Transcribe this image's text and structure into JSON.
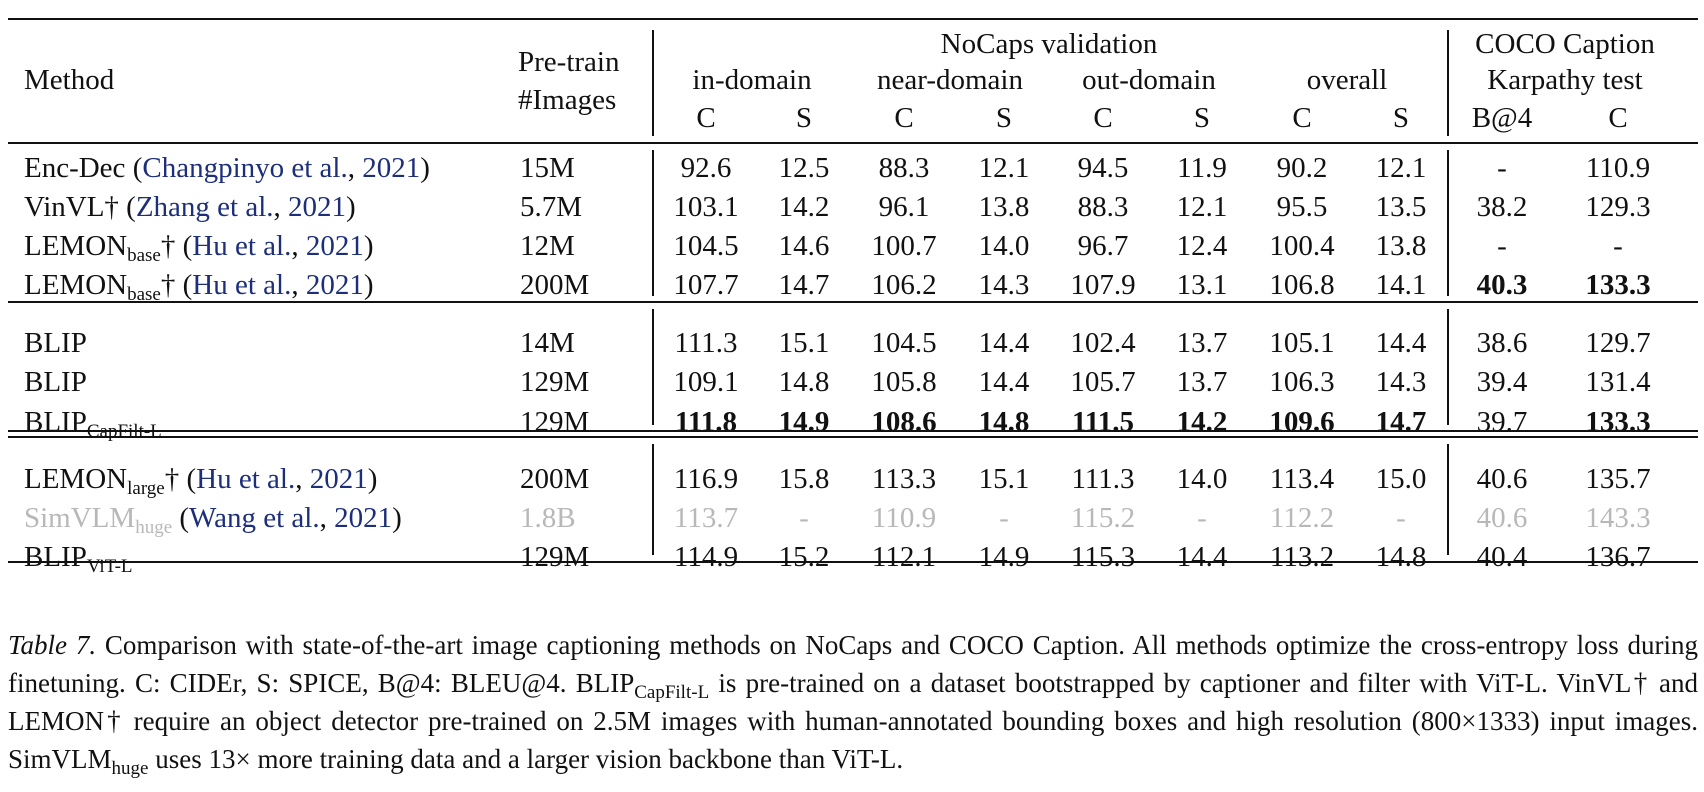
{
  "header": {
    "method": "Method",
    "pretrain_line1": "Pre-train",
    "pretrain_line2": "#Images",
    "nocaps_group": "NoCaps validation",
    "coco_group_line1": "COCO Caption",
    "coco_group_line2": "Karpathy test",
    "subgroups": [
      "in-domain",
      "near-domain",
      "out-domain",
      "overall"
    ],
    "metrics": [
      "C",
      "S",
      "C",
      "S",
      "C",
      "S",
      "C",
      "S",
      "B@4",
      "C"
    ]
  },
  "rows": [
    {
      "name": "Enc-Dec",
      "sub": "",
      "dagger": "",
      "cite_open": " (",
      "cite_author": "Changpinyo et al.",
      "cite_sep": ", ",
      "cite_year": "2021",
      "cite_close": ")",
      "images": "15M",
      "vals": [
        "92.6",
        "12.5",
        "88.3",
        "12.1",
        "94.5",
        "11.9",
        "90.2",
        "12.1",
        "-",
        "110.9"
      ]
    },
    {
      "name": "VinVL",
      "sub": "",
      "dagger": "†",
      "cite_open": " (",
      "cite_author": "Zhang et al.",
      "cite_sep": ", ",
      "cite_year": "2021",
      "cite_close": ")",
      "images": "5.7M",
      "vals": [
        "103.1",
        "14.2",
        "96.1",
        "13.8",
        "88.3",
        "12.1",
        "95.5",
        "13.5",
        "38.2",
        "129.3"
      ]
    },
    {
      "name": "LEMON",
      "sub": "base",
      "dagger": "†",
      "cite_open": " (",
      "cite_author": "Hu et al.",
      "cite_sep": ", ",
      "cite_year": "2021",
      "cite_close": ")",
      "images": "12M",
      "vals": [
        "104.5",
        "14.6",
        "100.7",
        "14.0",
        "96.7",
        "12.4",
        "100.4",
        "13.8",
        "-",
        "-"
      ]
    },
    {
      "name": "LEMON",
      "sub": "base",
      "dagger": "†",
      "cite_open": " (",
      "cite_author": "Hu et al.",
      "cite_sep": ", ",
      "cite_year": "2021",
      "cite_close": ")",
      "images": "200M",
      "vals": [
        "107.7",
        "14.7",
        "106.2",
        "14.3",
        "107.9",
        "13.1",
        "106.8",
        "14.1",
        "40.3",
        "133.3"
      ]
    },
    {
      "name": "BLIP",
      "sub": "",
      "dagger": "",
      "cite_open": "",
      "cite_author": "",
      "cite_sep": "",
      "cite_year": "",
      "cite_close": "",
      "images": "14M",
      "vals": [
        "111.3",
        "15.1",
        "104.5",
        "14.4",
        "102.4",
        "13.7",
        "105.1",
        "14.4",
        "38.6",
        "129.7"
      ]
    },
    {
      "name": "BLIP",
      "sub": "",
      "dagger": "",
      "cite_open": "",
      "cite_author": "",
      "cite_sep": "",
      "cite_year": "",
      "cite_close": "",
      "images": "129M",
      "vals": [
        "109.1",
        "14.8",
        "105.8",
        "14.4",
        "105.7",
        "13.7",
        "106.3",
        "14.3",
        "39.4",
        "131.4"
      ]
    },
    {
      "name": "BLIP",
      "sub": "CapFilt-L",
      "dagger": "",
      "cite_open": "",
      "cite_author": "",
      "cite_sep": "",
      "cite_year": "",
      "cite_close": "",
      "images": "129M",
      "vals": [
        "111.8",
        "14.9",
        "108.6",
        "14.8",
        "111.5",
        "14.2",
        "109.6",
        "14.7",
        "39.7",
        "133.3"
      ]
    },
    {
      "name": "LEMON",
      "sub": "large",
      "dagger": "†",
      "cite_open": " (",
      "cite_author": "Hu et al.",
      "cite_sep": ", ",
      "cite_year": "2021",
      "cite_close": ")",
      "images": "200M",
      "vals": [
        "116.9",
        "15.8",
        "113.3",
        "15.1",
        "111.3",
        "14.0",
        "113.4",
        "15.0",
        "40.6",
        "135.7"
      ]
    },
    {
      "name": "SimVLM",
      "sub": "huge",
      "dagger": "",
      "cite_open": " (",
      "cite_author": "Wang et al.",
      "cite_sep": ", ",
      "cite_year": "2021",
      "cite_close": ")",
      "images": "1.8B",
      "vals": [
        "113.7",
        "-",
        "110.9",
        "-",
        "115.2",
        "-",
        "112.2",
        "-",
        "40.6",
        "143.3"
      ]
    },
    {
      "name": "BLIP",
      "sub": "ViT-L",
      "dagger": "",
      "cite_open": "",
      "cite_author": "",
      "cite_sep": "",
      "cite_year": "",
      "cite_close": "",
      "images": "129M",
      "vals": [
        "114.9",
        "15.2",
        "112.1",
        "14.9",
        "115.3",
        "14.4",
        "113.2",
        "14.8",
        "40.4",
        "136.7"
      ]
    }
  ],
  "caption": {
    "label": "Table 7.",
    "p1": " Comparison with state-of-the-art image captioning methods on NoCaps and COCO Caption. All methods optimize the cross-entropy loss during finetuning. C: CIDEr, S: SPICE, B@4: BLEU@4. BLIP",
    "p1_sub": "CapFilt-L",
    "p2": " is pre-trained on a dataset bootstrapped by captioner and filter with ViT-L. VinVL† and LEMON† require an object detector pre-trained on 2.5M images with human-annotated bounding boxes and high resolution (800×1333) input images. SimVLM",
    "p2_sub": "huge",
    "p3": " uses 13× more training data and a larger vision backbone than ViT-L."
  }
}
